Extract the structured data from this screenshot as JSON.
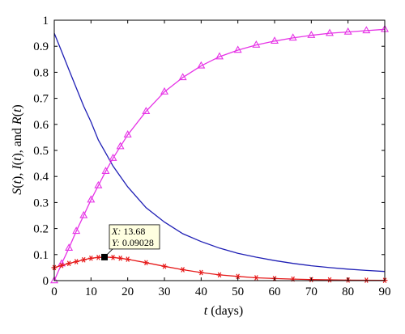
{
  "chart_data": {
    "type": "line",
    "xlabel_var": "t",
    "xlabel_unit": "(days)",
    "ylabel_parts": [
      "S",
      "(",
      "t",
      "), ",
      "I",
      "(",
      "t",
      "), and ",
      "R",
      "(",
      "t",
      ")"
    ],
    "xlim": [
      0,
      90
    ],
    "ylim": [
      0,
      1
    ],
    "xticks": [
      0,
      10,
      20,
      30,
      40,
      50,
      60,
      70,
      80,
      90
    ],
    "yticks": [
      0,
      0.1,
      0.2,
      0.3,
      0.4,
      0.5,
      0.6,
      0.7,
      0.8,
      0.9,
      1
    ],
    "ytick_labels": [
      "0",
      "0.1",
      "0.2",
      "0.3",
      "0.4",
      "0.5",
      "0.6",
      "0.7",
      "0.8",
      "0.9",
      "1"
    ],
    "grid": false,
    "legend": "none",
    "series": [
      {
        "key": "S",
        "color": "#1f1fb5",
        "marker": "none",
        "x": [
          0,
          2,
          4,
          6,
          8,
          10,
          12,
          14,
          16,
          18,
          20,
          25,
          30,
          35,
          40,
          45,
          50,
          55,
          60,
          65,
          70,
          75,
          80,
          85,
          90
        ],
        "y": [
          0.95,
          0.88,
          0.81,
          0.74,
          0.67,
          0.61,
          0.54,
          0.49,
          0.44,
          0.4,
          0.36,
          0.28,
          0.225,
          0.18,
          0.15,
          0.125,
          0.105,
          0.09,
          0.077,
          0.066,
          0.057,
          0.05,
          0.044,
          0.039,
          0.035
        ]
      },
      {
        "key": "R",
        "color": "#e633e6",
        "marker": "triangle",
        "x": [
          0,
          2,
          4,
          6,
          8,
          10,
          12,
          14,
          16,
          18,
          20,
          25,
          30,
          35,
          40,
          45,
          50,
          55,
          60,
          65,
          70,
          75,
          80,
          85,
          90
        ],
        "y": [
          0.0,
          0.065,
          0.125,
          0.19,
          0.25,
          0.31,
          0.365,
          0.42,
          0.47,
          0.515,
          0.56,
          0.65,
          0.725,
          0.78,
          0.825,
          0.86,
          0.885,
          0.905,
          0.92,
          0.932,
          0.942,
          0.95,
          0.955,
          0.96,
          0.965
        ]
      },
      {
        "key": "I",
        "color": "#e61a1a",
        "marker": "asterisk",
        "x": [
          0,
          2,
          4,
          6,
          8,
          10,
          12,
          13.68,
          16,
          18,
          20,
          25,
          30,
          35,
          40,
          45,
          50,
          55,
          60,
          65,
          70,
          75,
          80,
          85,
          90
        ],
        "y": [
          0.05,
          0.058,
          0.066,
          0.073,
          0.08,
          0.086,
          0.089,
          0.09028,
          0.089,
          0.086,
          0.082,
          0.069,
          0.055,
          0.042,
          0.031,
          0.022,
          0.016,
          0.011,
          0.008,
          0.006,
          0.004,
          0.003,
          0.002,
          0.0015,
          0.001
        ]
      }
    ],
    "datatip": {
      "x_key": "X:",
      "x_value": "13.68",
      "y_key": "Y:",
      "y_value": "0.09028",
      "x": 13.68,
      "y": 0.09028
    }
  }
}
